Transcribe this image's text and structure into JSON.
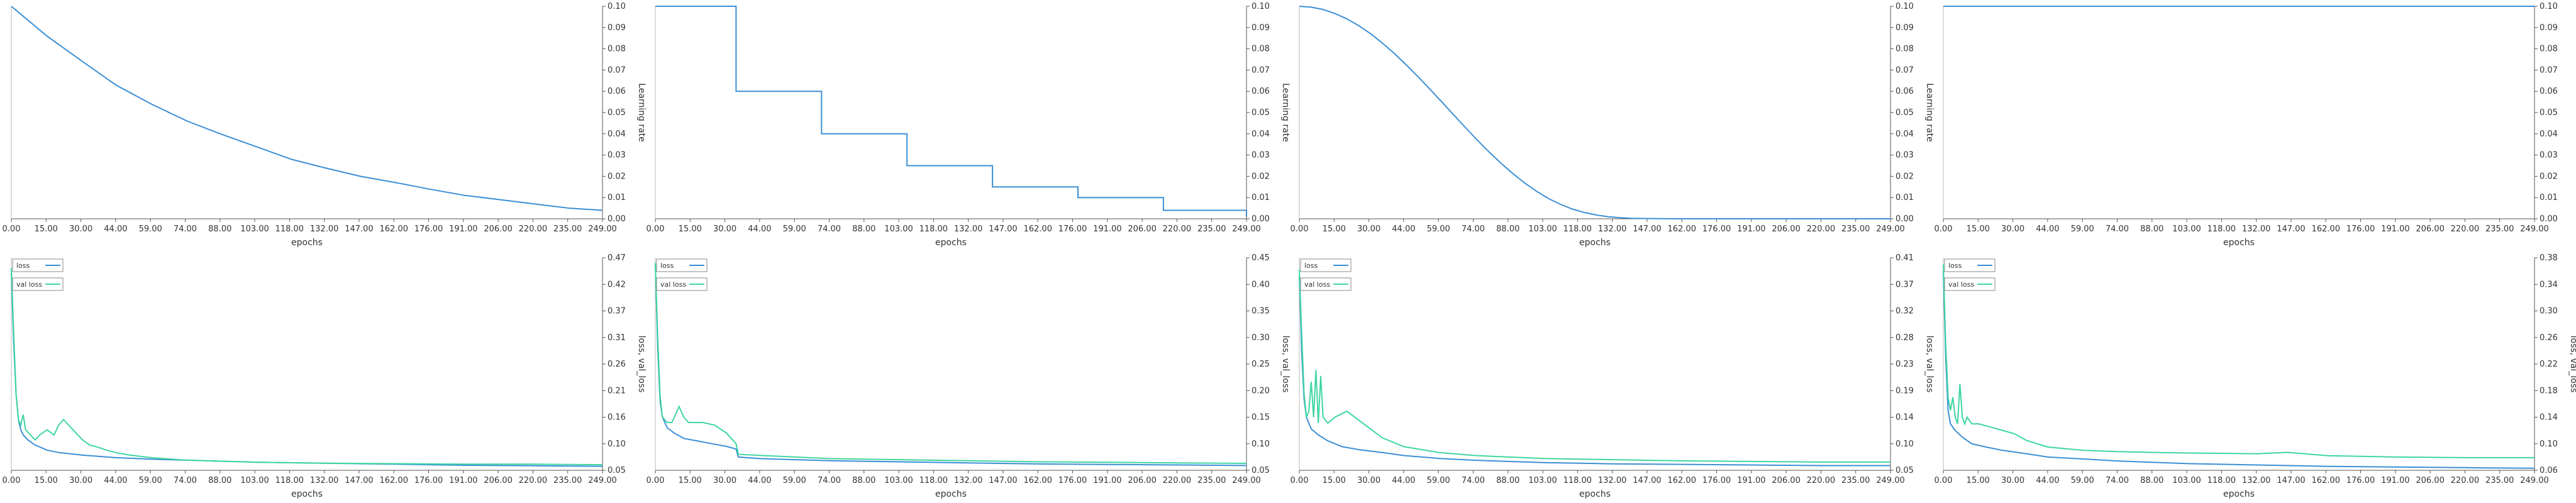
{
  "chart_data": [
    {
      "type": "line",
      "xlabel": "epochs",
      "ylabel": "Learning rate",
      "xlim": [
        0,
        249
      ],
      "ylim": [
        0,
        0.1
      ],
      "xticks": [
        "0.00",
        "15.00",
        "30.00",
        "44.00",
        "59.00",
        "74.00",
        "88.00",
        "103.00",
        "118.00",
        "132.00",
        "147.00",
        "162.00",
        "176.00",
        "191.00",
        "206.00",
        "220.00",
        "235.00",
        "249.00"
      ],
      "yticks": [
        "0.00",
        "0.01",
        "0.02",
        "0.03",
        "0.04",
        "0.05",
        "0.06",
        "0.07",
        "0.08",
        "0.09",
        "0.10"
      ],
      "legend": [],
      "series": [
        {
          "color": "#3b8fd6",
          "x": [
            0,
            15,
            30,
            44,
            59,
            74,
            88,
            103,
            118,
            132,
            147,
            162,
            176,
            191,
            206,
            220,
            235,
            249
          ],
          "y": [
            0.1,
            0.086,
            0.074,
            0.063,
            0.054,
            0.046,
            0.04,
            0.034,
            0.028,
            0.024,
            0.02,
            0.017,
            0.014,
            0.011,
            0.009,
            0.007,
            0.005,
            0.004
          ]
        }
      ]
    },
    {
      "type": "line",
      "xlabel": "epochs",
      "ylabel": "Learning rate",
      "xlim": [
        0,
        249
      ],
      "ylim": [
        0,
        0.1
      ],
      "xticks": [
        "0.00",
        "15.00",
        "30.00",
        "44.00",
        "59.00",
        "74.00",
        "88.00",
        "103.00",
        "118.00",
        "132.00",
        "147.00",
        "162.00",
        "176.00",
        "191.00",
        "206.00",
        "220.00",
        "235.00",
        "249.00"
      ],
      "yticks": [
        "0.00",
        "0.01",
        "0.02",
        "0.03",
        "0.04",
        "0.05",
        "0.06",
        "0.07",
        "0.08",
        "0.09",
        "0.10"
      ],
      "legend": [],
      "series": [
        {
          "color": "#3b8fd6",
          "x": [
            0,
            34,
            34,
            70,
            70,
            106,
            106,
            142,
            142,
            178,
            178,
            214,
            214,
            249,
            249
          ],
          "y": [
            0.1,
            0.1,
            0.06,
            0.06,
            0.04,
            0.04,
            0.025,
            0.025,
            0.015,
            0.015,
            0.01,
            0.01,
            0.004,
            0.004,
            0.001
          ]
        }
      ]
    },
    {
      "type": "line",
      "xlabel": "epochs",
      "ylabel": "Learning rate",
      "xlim": [
        0,
        249
      ],
      "ylim": [
        0,
        0.1
      ],
      "xticks": [
        "0.00",
        "15.00",
        "30.00",
        "44.00",
        "59.00",
        "74.00",
        "88.00",
        "103.00",
        "118.00",
        "132.00",
        "147.00",
        "162.00",
        "176.00",
        "191.00",
        "206.00",
        "220.00",
        "235.00",
        "249.00"
      ],
      "yticks": [
        "0.00",
        "0.01",
        "0.02",
        "0.03",
        "0.04",
        "0.05",
        "0.06",
        "0.07",
        "0.08",
        "0.09",
        "0.10"
      ],
      "legend": [],
      "series": [
        {
          "color": "#3b8fd6",
          "x": [
            0,
            5,
            10,
            15,
            20,
            25,
            30,
            35,
            40,
            45,
            50,
            55,
            60,
            65,
            70,
            75,
            80,
            85,
            90,
            95,
            100,
            105,
            110,
            115,
            120,
            125,
            130,
            135,
            140,
            150,
            160,
            170,
            180,
            190,
            200,
            220,
            249
          ],
          "y": [
            0.1,
            0.0996,
            0.0985,
            0.0966,
            0.0941,
            0.0909,
            0.0871,
            0.0827,
            0.0778,
            0.0725,
            0.0669,
            0.061,
            0.055,
            0.0489,
            0.0429,
            0.037,
            0.0314,
            0.0261,
            0.0212,
            0.0168,
            0.0129,
            0.0095,
            0.0068,
            0.0046,
            0.003,
            0.0018,
            0.001,
            0.0005,
            0.0002,
            0.0001,
            0.0,
            0.0,
            0.0,
            0.0,
            0.0,
            0.0,
            0.0
          ]
        }
      ]
    },
    {
      "type": "line",
      "xlabel": "epochs",
      "ylabel": "",
      "xlim": [
        0,
        249
      ],
      "ylim": [
        0,
        0.1
      ],
      "xticks": [
        "0.00",
        "15.00",
        "30.00",
        "44.00",
        "59.00",
        "74.00",
        "88.00",
        "103.00",
        "118.00",
        "132.00",
        "147.00",
        "162.00",
        "176.00",
        "191.00",
        "206.00",
        "220.00",
        "235.00",
        "249.00"
      ],
      "yticks": [
        "0.00",
        "0.01",
        "0.02",
        "0.03",
        "0.04",
        "0.05",
        "0.06",
        "0.07",
        "0.08",
        "0.09",
        "0.10"
      ],
      "legend": [],
      "series": [
        {
          "color": "#3b8fd6",
          "x": [
            0,
            249
          ],
          "y": [
            0.1,
            0.1
          ]
        }
      ]
    },
    {
      "type": "line",
      "xlabel": "epochs",
      "ylabel": "loss, val_loss",
      "xlim": [
        0,
        249
      ],
      "ylim": [
        0.05,
        0.47
      ],
      "xticks": [
        "0.00",
        "15.00",
        "30.00",
        "44.00",
        "59.00",
        "74.00",
        "88.00",
        "103.00",
        "118.00",
        "132.00",
        "147.00",
        "162.00",
        "176.00",
        "191.00",
        "206.00",
        "220.00",
        "235.00",
        "249.00"
      ],
      "yticks": [
        "0.05",
        "0.10",
        "0.16",
        "0.21",
        "0.26",
        "0.31",
        "0.37",
        "0.42",
        "0.47"
      ],
      "legend": [
        "loss",
        "val loss"
      ],
      "series": [
        {
          "name": "loss",
          "color": "#3b8fd6",
          "x": [
            0,
            1,
            2,
            3,
            4,
            5,
            7,
            10,
            15,
            20,
            30,
            44,
            59,
            74,
            88,
            103,
            132,
            162,
            191,
            220,
            249
          ],
          "y": [
            0.44,
            0.3,
            0.2,
            0.15,
            0.13,
            0.12,
            0.11,
            0.1,
            0.09,
            0.085,
            0.08,
            0.075,
            0.072,
            0.07,
            0.068,
            0.066,
            0.064,
            0.062,
            0.06,
            0.059,
            0.058
          ]
        },
        {
          "name": "val loss",
          "color": "#3ed6a0",
          "x": [
            0,
            1,
            2,
            3,
            4,
            5,
            6,
            8,
            10,
            12,
            15,
            18,
            20,
            22,
            24,
            26,
            28,
            30,
            33,
            37,
            40,
            44,
            50,
            59,
            74,
            88,
            103,
            132,
            162,
            191,
            220,
            249
          ],
          "y": [
            0.45,
            0.32,
            0.2,
            0.15,
            0.14,
            0.16,
            0.13,
            0.12,
            0.11,
            0.12,
            0.13,
            0.12,
            0.14,
            0.15,
            0.14,
            0.13,
            0.12,
            0.11,
            0.1,
            0.095,
            0.09,
            0.085,
            0.08,
            0.075,
            0.07,
            0.068,
            0.066,
            0.064,
            0.063,
            0.062,
            0.062,
            0.061
          ]
        }
      ]
    },
    {
      "type": "line",
      "xlabel": "epochs",
      "ylabel": "loss, val_loss",
      "xlim": [
        0,
        249
      ],
      "ylim": [
        0.05,
        0.45
      ],
      "xticks": [
        "0.00",
        "15.00",
        "30.00",
        "44.00",
        "59.00",
        "74.00",
        "88.00",
        "103.00",
        "118.00",
        "132.00",
        "147.00",
        "162.00",
        "176.00",
        "191.00",
        "206.00",
        "220.00",
        "235.00",
        "249.00"
      ],
      "yticks": [
        "0.05",
        "0.10",
        "0.15",
        "0.20",
        "0.25",
        "0.30",
        "0.35",
        "0.40",
        "0.45"
      ],
      "legend": [
        "loss",
        "val loss"
      ],
      "series": [
        {
          "name": "loss",
          "color": "#3b8fd6",
          "x": [
            0,
            1,
            2,
            3,
            5,
            8,
            12,
            18,
            24,
            30,
            34,
            35,
            44,
            59,
            74,
            103,
            132,
            162,
            191,
            220,
            249
          ],
          "y": [
            0.44,
            0.28,
            0.18,
            0.15,
            0.13,
            0.12,
            0.11,
            0.105,
            0.1,
            0.095,
            0.09,
            0.075,
            0.072,
            0.07,
            0.068,
            0.066,
            0.064,
            0.062,
            0.061,
            0.06,
            0.059
          ]
        },
        {
          "name": "val loss",
          "color": "#3ed6a0",
          "x": [
            0,
            1,
            2,
            3,
            5,
            7,
            9,
            10,
            12,
            14,
            17,
            20,
            25,
            30,
            34,
            35,
            44,
            59,
            74,
            103,
            132,
            162,
            191,
            220,
            249
          ],
          "y": [
            0.44,
            0.3,
            0.19,
            0.15,
            0.14,
            0.14,
            0.16,
            0.17,
            0.15,
            0.14,
            0.14,
            0.14,
            0.135,
            0.12,
            0.1,
            0.08,
            0.078,
            0.075,
            0.072,
            0.07,
            0.068,
            0.066,
            0.065,
            0.064,
            0.063
          ]
        }
      ]
    },
    {
      "type": "line",
      "xlabel": "epochs",
      "ylabel": "loss, val_loss",
      "xlim": [
        0,
        249
      ],
      "ylim": [
        0.05,
        0.41
      ],
      "xticks": [
        "0.00",
        "15.00",
        "30.00",
        "44.00",
        "59.00",
        "74.00",
        "88.00",
        "103.00",
        "118.00",
        "132.00",
        "147.00",
        "162.00",
        "176.00",
        "191.00",
        "206.00",
        "220.00",
        "235.00",
        "249.00"
      ],
      "yticks": [
        "0.05",
        "0.10",
        "0.14",
        "0.19",
        "0.23",
        "0.28",
        "0.32",
        "0.37",
        "0.41"
      ],
      "legend": [
        "loss",
        "val loss"
      ],
      "series": [
        {
          "name": "loss",
          "color": "#3b8fd6",
          "x": [
            0,
            1,
            2,
            3,
            5,
            8,
            12,
            18,
            25,
            35,
            44,
            59,
            74,
            88,
            103,
            132,
            162,
            191,
            220,
            249
          ],
          "y": [
            0.38,
            0.25,
            0.17,
            0.14,
            0.12,
            0.11,
            0.1,
            0.09,
            0.085,
            0.08,
            0.075,
            0.07,
            0.067,
            0.065,
            0.063,
            0.061,
            0.06,
            0.059,
            0.058,
            0.058
          ]
        },
        {
          "name": "val loss",
          "color": "#3ed6a0",
          "x": [
            0,
            1,
            2,
            3,
            4,
            5,
            6,
            7,
            8,
            9,
            10,
            12,
            15,
            20,
            25,
            30,
            35,
            44,
            59,
            74,
            103,
            132,
            162,
            191,
            220,
            249
          ],
          "y": [
            0.39,
            0.28,
            0.18,
            0.14,
            0.15,
            0.2,
            0.14,
            0.22,
            0.13,
            0.21,
            0.14,
            0.13,
            0.14,
            0.15,
            0.135,
            0.12,
            0.105,
            0.09,
            0.08,
            0.075,
            0.07,
            0.068,
            0.066,
            0.065,
            0.064,
            0.064
          ]
        }
      ]
    },
    {
      "type": "line",
      "xlabel": "epochs",
      "ylabel": "loss, val_loss",
      "xlim": [
        0,
        249
      ],
      "ylim": [
        0.06,
        0.38
      ],
      "xticks": [
        "0.00",
        "15.00",
        "30.00",
        "44.00",
        "59.00",
        "74.00",
        "88.00",
        "103.00",
        "118.00",
        "132.00",
        "147.00",
        "162.00",
        "176.00",
        "191.00",
        "206.00",
        "220.00",
        "235.00",
        "249.00"
      ],
      "yticks": [
        "0.06",
        "0.10",
        "0.14",
        "0.18",
        "0.22",
        "0.26",
        "0.30",
        "0.34",
        "0.38"
      ],
      "legend": [
        "loss",
        "val loss"
      ],
      "series": [
        {
          "name": "loss",
          "color": "#3b8fd6",
          "x": [
            0,
            1,
            2,
            3,
            5,
            8,
            12,
            18,
            25,
            35,
            44,
            59,
            74,
            88,
            103,
            132,
            162,
            191,
            220,
            249
          ],
          "y": [
            0.36,
            0.23,
            0.15,
            0.13,
            0.12,
            0.11,
            0.1,
            0.095,
            0.09,
            0.085,
            0.08,
            0.077,
            0.074,
            0.072,
            0.07,
            0.068,
            0.066,
            0.065,
            0.064,
            0.063
          ]
        },
        {
          "name": "val loss",
          "color": "#3ed6a0",
          "x": [
            0,
            1,
            2,
            3,
            4,
            5,
            6,
            7,
            8,
            9,
            10,
            12,
            15,
            20,
            25,
            30,
            35,
            44,
            59,
            74,
            88,
            103,
            132,
            145,
            162,
            191,
            220,
            249
          ],
          "y": [
            0.37,
            0.25,
            0.17,
            0.15,
            0.17,
            0.14,
            0.13,
            0.19,
            0.14,
            0.13,
            0.14,
            0.13,
            0.13,
            0.125,
            0.12,
            0.115,
            0.105,
            0.095,
            0.09,
            0.088,
            0.087,
            0.086,
            0.085,
            0.087,
            0.082,
            0.08,
            0.079,
            0.079
          ]
        }
      ]
    }
  ]
}
